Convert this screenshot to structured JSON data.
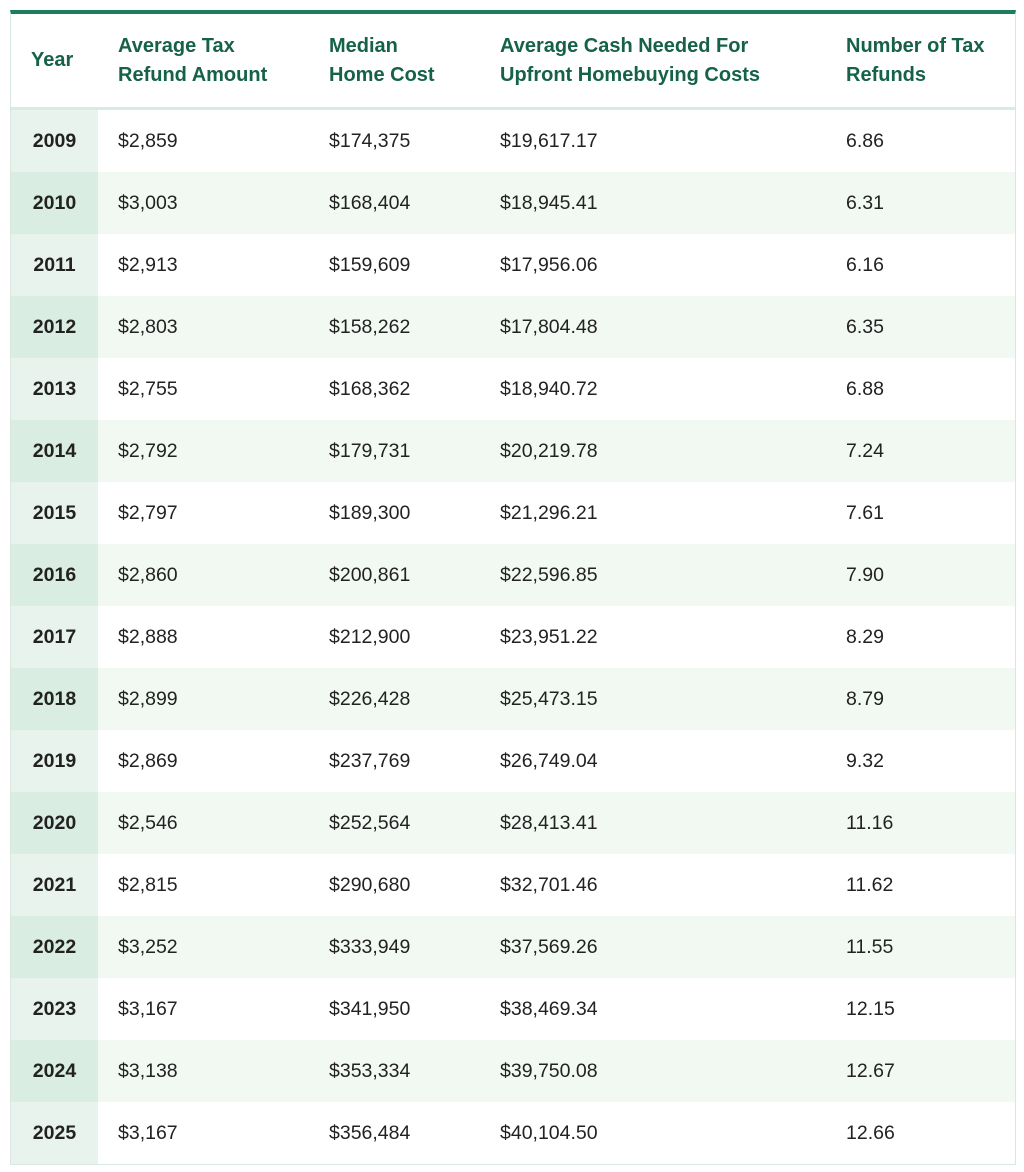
{
  "table": {
    "headers": {
      "year": "Year",
      "refund_line1": "Average Tax",
      "refund_line2": "Refund Amount",
      "home_line1": "Median",
      "home_line2": "Home Cost",
      "cash_line1": "Average Cash Needed For",
      "cash_line2": "Upfront Homebuying Costs",
      "num_line1": "Number of Tax",
      "num_line2": "Refunds"
    },
    "rows": [
      {
        "year": "2009",
        "refund": "$2,859",
        "home": "$174,375",
        "cash": "$19,617.17",
        "num": "6.86"
      },
      {
        "year": "2010",
        "refund": "$3,003",
        "home": "$168,404",
        "cash": "$18,945.41",
        "num": "6.31"
      },
      {
        "year": "2011",
        "refund": "$2,913",
        "home": "$159,609",
        "cash": "$17,956.06",
        "num": "6.16"
      },
      {
        "year": "2012",
        "refund": "$2,803",
        "home": "$158,262",
        "cash": "$17,804.48",
        "num": "6.35"
      },
      {
        "year": "2013",
        "refund": "$2,755",
        "home": "$168,362",
        "cash": "$18,940.72",
        "num": "6.88"
      },
      {
        "year": "2014",
        "refund": "$2,792",
        "home": "$179,731",
        "cash": "$20,219.78",
        "num": "7.24"
      },
      {
        "year": "2015",
        "refund": "$2,797",
        "home": "$189,300",
        "cash": "$21,296.21",
        "num": "7.61"
      },
      {
        "year": "2016",
        "refund": "$2,860",
        "home": "$200,861",
        "cash": "$22,596.85",
        "num": "7.90"
      },
      {
        "year": "2017",
        "refund": "$2,888",
        "home": "$212,900",
        "cash": "$23,951.22",
        "num": "8.29"
      },
      {
        "year": "2018",
        "refund": "$2,899",
        "home": "$226,428",
        "cash": "$25,473.15",
        "num": "8.79"
      },
      {
        "year": "2019",
        "refund": "$2,869",
        "home": "$237,769",
        "cash": "$26,749.04",
        "num": "9.32"
      },
      {
        "year": "2020",
        "refund": "$2,546",
        "home": "$252,564",
        "cash": "$28,413.41",
        "num": "11.16"
      },
      {
        "year": "2021",
        "refund": "$2,815",
        "home": "$290,680",
        "cash": "$32,701.46",
        "num": "11.62"
      },
      {
        "year": "2022",
        "refund": "$3,252",
        "home": "$333,949",
        "cash": "$37,569.26",
        "num": "11.55"
      },
      {
        "year": "2023",
        "refund": "$3,167",
        "home": "$341,950",
        "cash": "$38,469.34",
        "num": "12.15"
      },
      {
        "year": "2024",
        "refund": "$3,138",
        "home": "$353,334",
        "cash": "$39,750.08",
        "num": "12.67"
      },
      {
        "year": "2025",
        "refund": "$3,167",
        "home": "$356,484",
        "cash": "$40,104.50",
        "num": "12.66"
      }
    ]
  },
  "colors": {
    "accent": "#1a7f5a",
    "header_text": "#16614a",
    "row_stripe": "#f2f9f3",
    "year_cell": "#e8f3ee",
    "year_cell_stripe": "#d9ede2"
  }
}
